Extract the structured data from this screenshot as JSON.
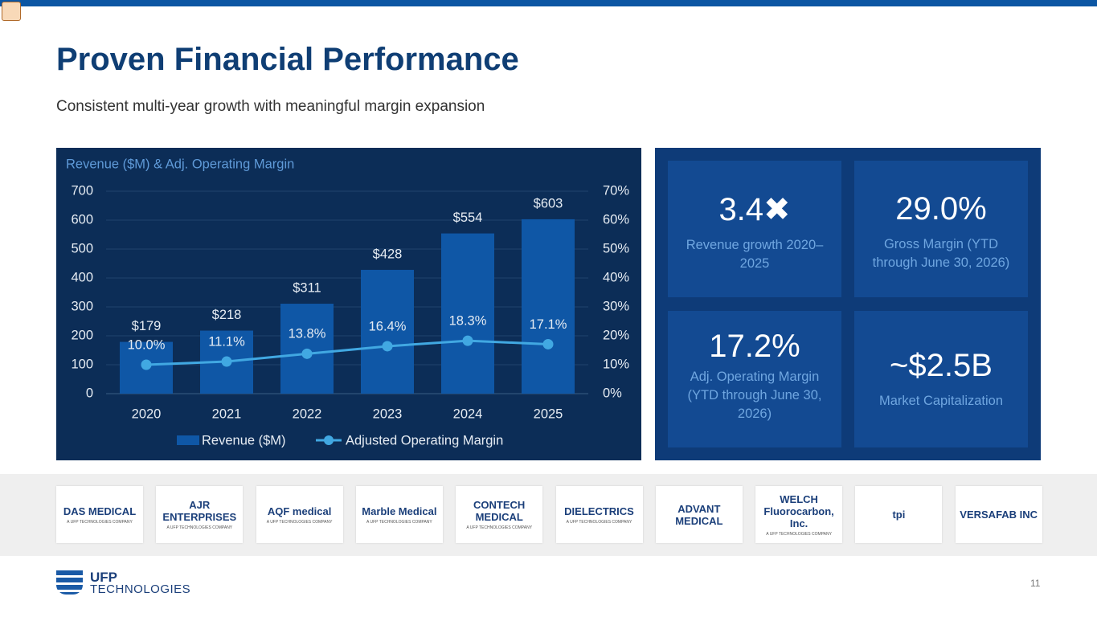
{
  "header": {
    "title": "Proven Financial Performance",
    "subtitle": "Consistent multi-year growth with meaningful margin expansion"
  },
  "chart_data": {
    "type": "bar",
    "title": "Revenue ($M) & Adj. Operating Margin",
    "categories": [
      "2020",
      "2021",
      "2022",
      "2023",
      "2024",
      "2025"
    ],
    "series": [
      {
        "name": "Revenue ($M)",
        "type": "bar",
        "color": "#0f57a6",
        "values": [
          179,
          218,
          311,
          428,
          554,
          603
        ],
        "value_labels": [
          "$179",
          "$218",
          "$311",
          "$428",
          "$554",
          "$603"
        ]
      },
      {
        "name": "Adjusted Operating Margin",
        "type": "line",
        "axis": "y2",
        "color": "#41a8e2",
        "values": [
          10.0,
          11.1,
          13.8,
          16.4,
          18.3,
          17.1
        ],
        "value_labels": [
          "10.0%",
          "11.1%",
          "13.8%",
          "16.4%",
          "18.3%",
          "17.1%"
        ]
      }
    ],
    "ylim": [
      0,
      700
    ],
    "yticks": [
      0,
      100,
      200,
      300,
      400,
      500,
      600,
      700
    ],
    "y2lim": [
      0,
      70
    ],
    "y2ticks": [
      {
        "value": 0,
        "label": "0%"
      },
      {
        "value": 10,
        "label": "10%"
      },
      {
        "value": 20,
        "label": "20%"
      },
      {
        "value": 30,
        "label": "30%"
      },
      {
        "value": 40,
        "label": "40%"
      },
      {
        "value": 50,
        "label": "50%"
      },
      {
        "value": 60,
        "label": "60%"
      },
      {
        "value": 70,
        "label": "70%"
      }
    ],
    "grid": true,
    "legend": "bottom"
  },
  "kpis": [
    {
      "value": "3.4✖",
      "label": "Revenue growth 2020–2025"
    },
    {
      "value": "29.0%",
      "label": "Gross Margin (YTD through June 30, 2026)"
    },
    {
      "value": "17.2%",
      "label": "Adj. Operating Margin (YTD through June 30, 2026)"
    },
    {
      "value": "~$2.5B",
      "label": "Market Capitalization"
    }
  ],
  "logos": [
    {
      "name": "DAS MEDICAL",
      "tagline": "A UFP TECHNOLOGIES COMPANY"
    },
    {
      "name": "AJR ENTERPRISES",
      "tagline": "A UFP TECHNOLOGIES COMPANY"
    },
    {
      "name": "AQF medical",
      "tagline": "A UFP TECHNOLOGIES COMPANY"
    },
    {
      "name": "Marble Medical",
      "tagline": "A UFP TECHNOLOGIES COMPANY"
    },
    {
      "name": "CONTECH MEDICAL",
      "tagline": "A UFP TECHNOLOGIES COMPANY"
    },
    {
      "name": "DIELECTRICS",
      "tagline": "A UFP TECHNOLOGIES COMPANY"
    },
    {
      "name": "ADVANT MEDICAL"
    },
    {
      "name": "WELCH Fluorocarbon, Inc.",
      "tagline": "A UFP TECHNOLOGIES COMPANY"
    },
    {
      "name": "tpi"
    },
    {
      "name": "VERSAFAB INC"
    }
  ],
  "footer": {
    "brand": "UFP",
    "brand_sub": "TECHNOLOGIES",
    "page": "11"
  }
}
